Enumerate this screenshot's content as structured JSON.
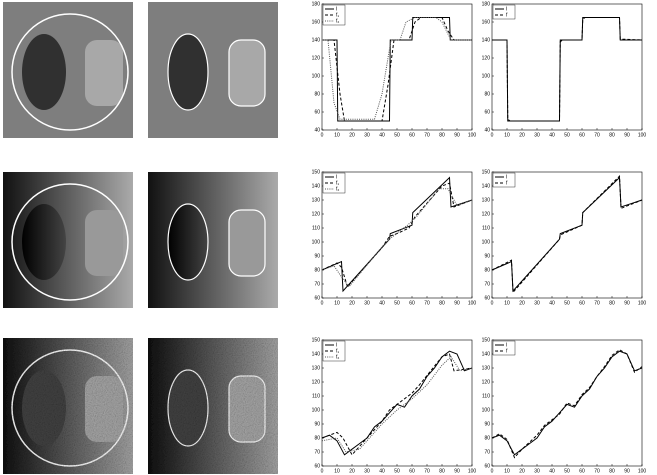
{
  "chart_data": [
    {
      "type": "line",
      "xlim": [
        0,
        100
      ],
      "ylim": [
        40,
        180
      ],
      "xticks": [
        0,
        10,
        20,
        30,
        40,
        50,
        60,
        70,
        80,
        90,
        100
      ],
      "yticks": [
        40,
        60,
        80,
        100,
        120,
        140,
        160,
        180
      ],
      "series": [
        {
          "name": "I",
          "color": "#000000",
          "dash": "solid",
          "x": [
            0,
            10,
            10.5,
            45,
            45.5,
            60,
            60.5,
            85,
            85.5,
            100
          ],
          "values": [
            140,
            140,
            50,
            50,
            140,
            140,
            165,
            165,
            140,
            140
          ]
        },
        {
          "name": "f₁",
          "color": "#000000",
          "dash": "dashed",
          "x": [
            0,
            8,
            12,
            15,
            40,
            44,
            48,
            58,
            62,
            66,
            80,
            84,
            88,
            100
          ],
          "values": [
            140,
            140,
            80,
            50,
            50,
            90,
            140,
            140,
            160,
            165,
            165,
            150,
            140,
            140
          ]
        },
        {
          "name": "f₂",
          "color": "#555555",
          "dash": "dotted",
          "x": [
            0,
            4,
            8,
            12,
            35,
            40,
            46,
            52,
            56,
            62,
            76,
            80,
            86,
            90,
            100
          ],
          "values": [
            140,
            140,
            70,
            52,
            52,
            80,
            140,
            140,
            160,
            165,
            165,
            160,
            140,
            140,
            140
          ]
        }
      ]
    },
    {
      "type": "line",
      "xlim": [
        0,
        100
      ],
      "ylim": [
        40,
        180
      ],
      "xticks": [
        0,
        10,
        20,
        30,
        40,
        50,
        60,
        70,
        80,
        90,
        100
      ],
      "yticks": [
        40,
        60,
        80,
        100,
        120,
        140,
        160,
        180
      ],
      "series": [
        {
          "name": "I",
          "color": "#000000",
          "dash": "solid",
          "x": [
            0,
            10,
            10.5,
            45,
            45.5,
            60,
            60.5,
            85,
            85.5,
            100
          ],
          "values": [
            140,
            140,
            50,
            50,
            140,
            140,
            165,
            165,
            140,
            140
          ]
        },
        {
          "name": "f",
          "color": "#000000",
          "dash": "dashed",
          "x": [
            0,
            10,
            10.5,
            12,
            45,
            45.5,
            47,
            60,
            60.5,
            62,
            85,
            85.5,
            100
          ],
          "values": [
            140,
            140,
            52,
            50,
            50,
            138,
            140,
            140,
            163,
            165,
            165,
            141,
            140
          ]
        }
      ]
    },
    {
      "type": "line",
      "xlim": [
        0,
        100
      ],
      "ylim": [
        60,
        150
      ],
      "xticks": [
        0,
        10,
        20,
        30,
        40,
        50,
        60,
        70,
        80,
        90,
        100
      ],
      "yticks": [
        60,
        70,
        80,
        90,
        100,
        110,
        120,
        130,
        140,
        150
      ],
      "series": [
        {
          "name": "I",
          "color": "#000000",
          "dash": "solid",
          "x": [
            0,
            13,
            14,
            45,
            45.5,
            60,
            60.5,
            85,
            86,
            100
          ],
          "values": [
            80,
            86,
            65,
            102,
            106,
            112,
            121,
            146,
            125,
            130
          ]
        },
        {
          "name": "f₁",
          "color": "#000000",
          "dash": "dashed",
          "x": [
            0,
            10,
            13,
            17,
            40,
            45,
            50,
            58,
            62,
            80,
            85,
            88,
            100
          ],
          "values": [
            80,
            85,
            82,
            68,
            96,
            104,
            106,
            110,
            118,
            140,
            142,
            125,
            130
          ]
        },
        {
          "name": "f₂",
          "color": "#555555",
          "dash": "dotted",
          "x": [
            0,
            8,
            13,
            18,
            38,
            45,
            52,
            57,
            63,
            78,
            84,
            90,
            100
          ],
          "values": [
            80,
            83,
            75,
            68,
            94,
            102,
            108,
            112,
            118,
            138,
            138,
            126,
            130
          ]
        }
      ]
    },
    {
      "type": "line",
      "xlim": [
        0,
        100
      ],
      "ylim": [
        60,
        150
      ],
      "xticks": [
        0,
        10,
        20,
        30,
        40,
        50,
        60,
        70,
        80,
        90,
        100
      ],
      "yticks": [
        60,
        70,
        80,
        90,
        100,
        110,
        120,
        130,
        140,
        150
      ],
      "series": [
        {
          "name": "I",
          "color": "#000000",
          "dash": "solid",
          "x": [
            0,
            13,
            14,
            45,
            45.5,
            60,
            60.5,
            85,
            86,
            100
          ],
          "values": [
            80,
            86,
            65,
            102,
            106,
            112,
            121,
            146,
            125,
            130
          ]
        },
        {
          "name": "f",
          "color": "#000000",
          "dash": "dashed",
          "x": [
            0,
            13,
            14,
            45,
            45.5,
            60,
            60.5,
            85,
            86,
            100
          ],
          "values": [
            80,
            87,
            64,
            102,
            105,
            112,
            121,
            147,
            124,
            130
          ]
        }
      ]
    },
    {
      "type": "line",
      "xlim": [
        0,
        100
      ],
      "ylim": [
        60,
        150
      ],
      "xticks": [
        0,
        10,
        20,
        30,
        40,
        50,
        60,
        70,
        80,
        90,
        100
      ],
      "yticks": [
        60,
        70,
        80,
        90,
        100,
        110,
        120,
        130,
        140,
        150
      ],
      "series": [
        {
          "name": "I",
          "color": "#000000",
          "dash": "solid",
          "x": [
            0,
            5,
            10,
            15,
            20,
            25,
            30,
            35,
            40,
            45,
            50,
            55,
            60,
            65,
            70,
            75,
            80,
            85,
            90,
            95,
            100
          ],
          "values": [
            80,
            82,
            78,
            68,
            72,
            76,
            80,
            88,
            92,
            98,
            104,
            102,
            110,
            115,
            124,
            130,
            138,
            142,
            140,
            128,
            130
          ]
        },
        {
          "name": "f₁",
          "color": "#000000",
          "dash": "dashed",
          "x": [
            0,
            10,
            14,
            20,
            40,
            45,
            50,
            60,
            65,
            80,
            85,
            88,
            100
          ],
          "values": [
            80,
            84,
            80,
            68,
            92,
            100,
            104,
            112,
            118,
            138,
            140,
            128,
            130
          ]
        },
        {
          "name": "f₂",
          "color": "#555555",
          "dash": "dotted",
          "x": [
            0,
            10,
            16,
            25,
            40,
            50,
            60,
            70,
            80,
            86,
            92,
            100
          ],
          "values": [
            78,
            80,
            70,
            72,
            90,
            100,
            108,
            118,
            132,
            138,
            128,
            130
          ]
        }
      ]
    },
    {
      "type": "line",
      "xlim": [
        0,
        100
      ],
      "ylim": [
        60,
        150
      ],
      "xticks": [
        0,
        10,
        20,
        30,
        40,
        50,
        60,
        70,
        80,
        90,
        100
      ],
      "yticks": [
        60,
        70,
        80,
        90,
        100,
        110,
        120,
        130,
        140,
        150
      ],
      "series": [
        {
          "name": "I",
          "color": "#000000",
          "dash": "solid",
          "x": [
            0,
            5,
            10,
            15,
            20,
            25,
            30,
            35,
            40,
            45,
            50,
            55,
            60,
            65,
            70,
            75,
            80,
            85,
            90,
            95,
            100
          ],
          "values": [
            80,
            82,
            78,
            68,
            72,
            76,
            80,
            88,
            92,
            98,
            104,
            102,
            110,
            115,
            124,
            130,
            138,
            142,
            140,
            128,
            130
          ]
        },
        {
          "name": "f",
          "color": "#000000",
          "dash": "dashed",
          "x": [
            0,
            5,
            10,
            15,
            20,
            25,
            30,
            35,
            40,
            45,
            50,
            55,
            60,
            65,
            70,
            75,
            80,
            85,
            90,
            95,
            100
          ],
          "values": [
            80,
            83,
            79,
            66,
            72,
            77,
            82,
            89,
            93,
            97,
            105,
            103,
            111,
            116,
            124,
            131,
            139,
            143,
            140,
            127,
            131
          ]
        }
      ]
    }
  ]
}
